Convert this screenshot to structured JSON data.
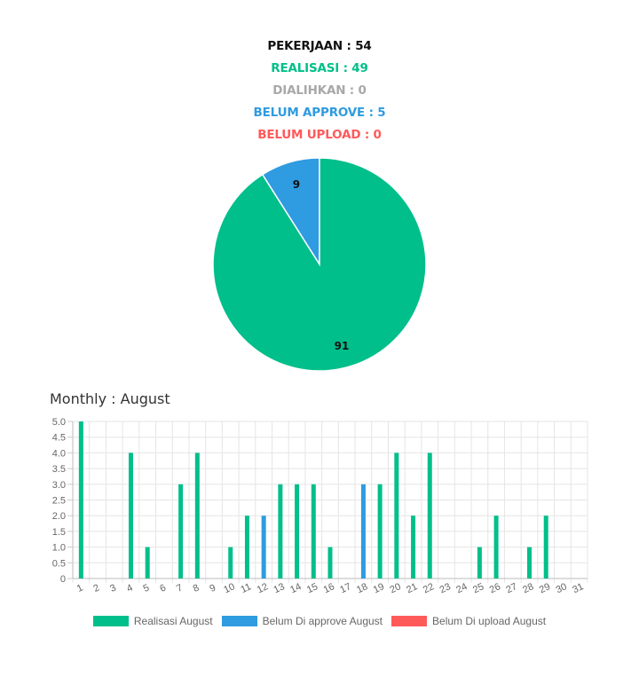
{
  "stats": {
    "pekerjaan": {
      "text": "PEKERJAAN : 54",
      "color": "#111111"
    },
    "realisasi": {
      "text": "REALISASI : 49",
      "color": "#00bf8a"
    },
    "dialihkan": {
      "text": "DIALIHKAN : 0",
      "color": "#a8a8a8"
    },
    "belum_approve": {
      "text": "BELUM APPROVE : 5",
      "color": "#2f9be0"
    },
    "belum_upload": {
      "text": "BELUM UPLOAD : 0",
      "color": "#ff5a5a"
    }
  },
  "chart_data": [
    {
      "type": "pie",
      "labels": [
        "91",
        "9"
      ],
      "values": [
        91,
        9
      ],
      "colors": [
        "#00bf8a",
        "#2f9be0"
      ]
    },
    {
      "type": "bar",
      "title": "Monthly : August",
      "categories": [
        "1",
        "2",
        "3",
        "4",
        "5",
        "6",
        "7",
        "8",
        "9",
        "10",
        "11",
        "12",
        "13",
        "14",
        "15",
        "16",
        "17",
        "18",
        "19",
        "20",
        "21",
        "22",
        "23",
        "24",
        "25",
        "26",
        "27",
        "28",
        "29",
        "30",
        "31"
      ],
      "ylim": [
        0,
        5
      ],
      "yticks": [
        "0",
        "0.5",
        "1.0",
        "1.5",
        "2.0",
        "2.5",
        "3.0",
        "3.5",
        "4.0",
        "4.5",
        "5.0"
      ],
      "grid": true,
      "legend_position": "bottom",
      "series": [
        {
          "name": "Realisasi August",
          "color": "#00bf8a",
          "values": [
            5,
            0,
            0,
            4,
            1,
            0,
            3,
            4,
            0,
            1,
            2,
            0,
            3,
            3,
            3,
            1,
            0,
            0,
            3,
            4,
            2,
            4,
            0,
            0,
            1,
            2,
            0,
            1,
            2,
            0,
            0
          ]
        },
        {
          "name": "Belum Di approve August",
          "color": "#2f9be0",
          "values": [
            0,
            0,
            0,
            0,
            0,
            0,
            0,
            0,
            0,
            0,
            0,
            2,
            0,
            0,
            0,
            0,
            0,
            3,
            0,
            0,
            0,
            0,
            0,
            0,
            0,
            0,
            0,
            0,
            0,
            0,
            0
          ]
        },
        {
          "name": "Belum Di upload August",
          "color": "#ff5a5a",
          "values": [
            0,
            0,
            0,
            0,
            0,
            0,
            0,
            0,
            0,
            0,
            0,
            0,
            0,
            0,
            0,
            0,
            0,
            0,
            0,
            0,
            0,
            0,
            0,
            0,
            0,
            0,
            0,
            0,
            0,
            0,
            0
          ]
        }
      ]
    }
  ]
}
